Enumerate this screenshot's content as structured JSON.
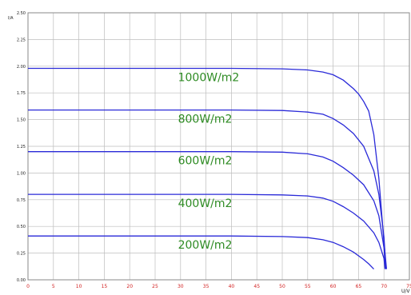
{
  "chart_data": {
    "type": "line",
    "xlabel": "U/V",
    "ylabel": "I/A",
    "xlim": [
      0,
      75
    ],
    "ylim": [
      0,
      2.5
    ],
    "x_ticks": [
      "0",
      "5",
      "10",
      "15",
      "20",
      "25",
      "30",
      "35",
      "40",
      "45",
      "50",
      "55",
      "60",
      "65",
      "70",
      "75"
    ],
    "y_ticks": [
      "0.00",
      "0.25",
      "0.50",
      "0.75",
      "1.00",
      "1.25",
      "1.50",
      "1.75",
      "2.00",
      "2.25",
      "2.50"
    ],
    "grid": true,
    "series": [
      {
        "name": "1000W/m2",
        "x": [
          0,
          10,
          20,
          30,
          40,
          50,
          55,
          58,
          60,
          62,
          64,
          65,
          66,
          67,
          68,
          69,
          70,
          70.5
        ],
        "y": [
          1.98,
          1.98,
          1.98,
          1.98,
          1.98,
          1.975,
          1.965,
          1.945,
          1.92,
          1.87,
          1.79,
          1.74,
          1.67,
          1.58,
          1.36,
          0.95,
          0.35,
          0.1
        ]
      },
      {
        "name": "800W/m2",
        "x": [
          0,
          10,
          20,
          30,
          40,
          50,
          55,
          58,
          60,
          62,
          64,
          66,
          68,
          69,
          70,
          70.4
        ],
        "y": [
          1.59,
          1.59,
          1.59,
          1.59,
          1.59,
          1.585,
          1.57,
          1.55,
          1.51,
          1.45,
          1.37,
          1.25,
          1.02,
          0.8,
          0.4,
          0.1
        ]
      },
      {
        "name": "600W/m2",
        "x": [
          0,
          10,
          20,
          30,
          40,
          50,
          55,
          58,
          60,
          62,
          64,
          66,
          68,
          69,
          70,
          70.3
        ],
        "y": [
          1.2,
          1.2,
          1.2,
          1.2,
          1.2,
          1.195,
          1.18,
          1.15,
          1.11,
          1.05,
          0.98,
          0.89,
          0.74,
          0.6,
          0.3,
          0.1
        ]
      },
      {
        "name": "400W/m2",
        "x": [
          0,
          10,
          20,
          30,
          40,
          50,
          55,
          58,
          60,
          62,
          64,
          66,
          68,
          69,
          70,
          70.2
        ],
        "y": [
          0.8,
          0.8,
          0.8,
          0.8,
          0.8,
          0.795,
          0.785,
          0.765,
          0.735,
          0.685,
          0.625,
          0.55,
          0.44,
          0.35,
          0.2,
          0.1
        ]
      },
      {
        "name": "200W/m2",
        "x": [
          0,
          10,
          20,
          30,
          40,
          50,
          55,
          58,
          60,
          62,
          64,
          66,
          67,
          68
        ],
        "y": [
          0.41,
          0.41,
          0.41,
          0.41,
          0.41,
          0.405,
          0.395,
          0.375,
          0.35,
          0.31,
          0.26,
          0.19,
          0.15,
          0.1
        ]
      }
    ],
    "series_color": "#2a2ad8",
    "curve_label_color": "#2e8b23",
    "x_tick_color": "#d21f1f",
    "grid_color": "#bdbdbd"
  }
}
